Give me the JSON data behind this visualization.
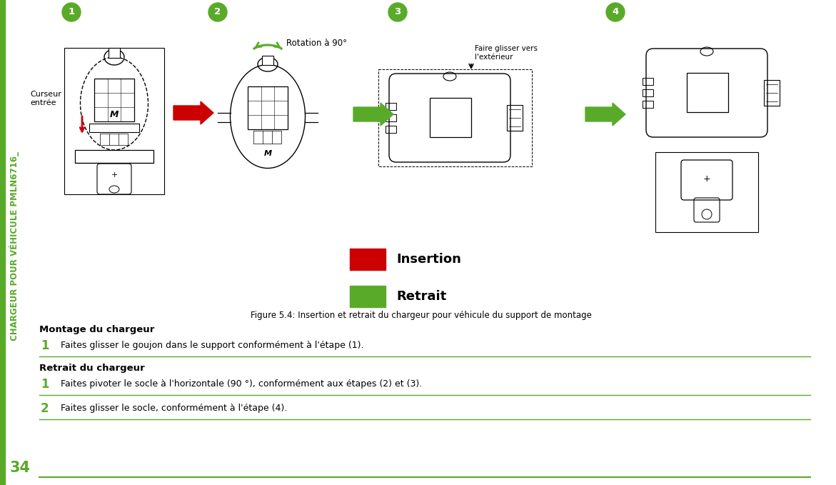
{
  "bg_color": "#ffffff",
  "green_color": "#5aaa2a",
  "red_color": "#cc0000",
  "text_color": "#000000",
  "sidebar_text": "CHARGEUR POUR VÉHICULE PMLN6716_",
  "page_number": "34",
  "figure_caption": "Figure 5.4: Insertion et retrait du chargeur pour véhicule du support de montage",
  "section1_title": "Montage du chargeur",
  "section1_item1_num": "1",
  "section1_item1_text": "Faites glisser le goujon dans le support conformément à l'étape (1).",
  "section2_title": "Retrait du chargeur",
  "section2_item1_num": "1",
  "section2_item1_text": "Faites pivoter le socle à l'horizontale (90 °), conformément aux étapes (2) et (3).",
  "section2_item2_num": "2",
  "section2_item2_text": "Faites glisser le socle, conformément à l'étape (4).",
  "legend_insertion": "Insertion",
  "legend_retrait": "Retrait",
  "label_rotation": "Rotation à 90°",
  "label_faire_glisser": "Faire glisser vers\nl'extérieur",
  "label_curseur": "Curseur\nentrée",
  "step_numbers": [
    "1",
    "2",
    "3",
    "4"
  ]
}
